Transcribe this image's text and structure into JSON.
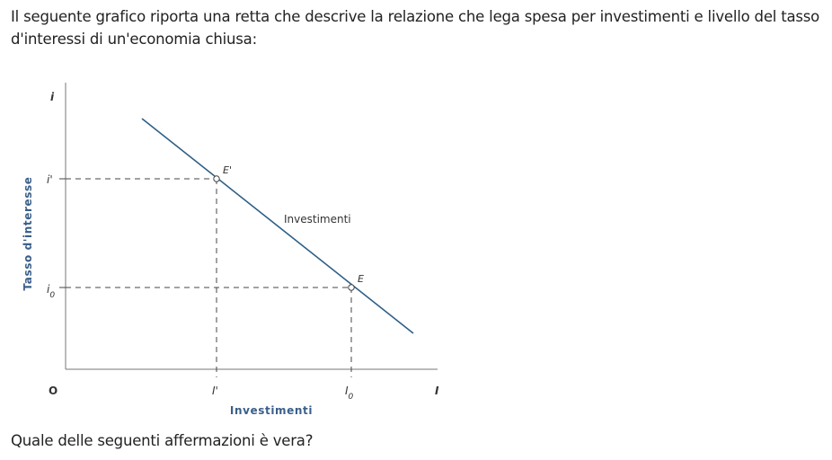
{
  "intro_text": "Il seguente grafico riporta una retta che descrive la relazione che lega spesa per investimenti e livello del tasso d'interessi di un'economia chiusa:",
  "question_text": "Quale delle seguenti affermazioni è vera?",
  "chart_data": {
    "type": "line",
    "title": "",
    "xlabel": "Investimenti",
    "ylabel": "Tasso d'interesse",
    "x_axis_symbol": "I",
    "y_axis_symbol": "i",
    "origin_label": "O",
    "x_ticks": [
      "I'",
      "I0"
    ],
    "y_ticks": [
      "i'",
      "i0"
    ],
    "series": [
      {
        "name": "Investimenti",
        "color": "#2e5f86",
        "shape": "downward-sloping straight line"
      }
    ],
    "points": [
      {
        "label": "E'",
        "x": "I'",
        "y": "i'"
      },
      {
        "label": "E",
        "x": "I0",
        "y": "i0"
      }
    ],
    "grid": false,
    "guide_lines": "dashed"
  }
}
